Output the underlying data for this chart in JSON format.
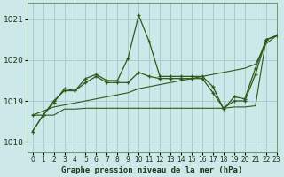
{
  "title": "Graphe pression niveau de la mer (hPa)",
  "background_color": "#cce8e8",
  "grid_color": "#aacccc",
  "line_color": "#2d5a1b",
  "xlim": [
    -0.5,
    23
  ],
  "ylim": [
    1017.75,
    1021.4
  ],
  "yticks": [
    1018,
    1019,
    1020,
    1021
  ],
  "xticks": [
    0,
    1,
    2,
    3,
    4,
    5,
    6,
    7,
    8,
    9,
    10,
    11,
    12,
    13,
    14,
    15,
    16,
    17,
    18,
    19,
    20,
    21,
    22,
    23
  ],
  "series_main": [
    1018.25,
    1018.65,
    1018.95,
    1019.3,
    1019.25,
    1019.55,
    1019.65,
    1019.5,
    1019.5,
    1020.05,
    1021.1,
    1020.45,
    1019.6,
    1019.6,
    1019.6,
    1019.6,
    1019.6,
    1019.35,
    1018.8,
    1019.1,
    1019.05,
    1019.8,
    1020.5,
    1020.6
  ],
  "series_mid": [
    1018.65,
    1018.65,
    1019.0,
    1019.25,
    1019.25,
    1019.45,
    1019.6,
    1019.45,
    1019.45,
    1019.45,
    1019.7,
    1019.6,
    1019.55,
    1019.55,
    1019.55,
    1019.55,
    1019.55,
    1019.2,
    1018.82,
    1019.0,
    1019.0,
    1019.65,
    1020.5,
    1020.6
  ],
  "series_flat": [
    1018.25,
    1018.65,
    1018.65,
    1018.8,
    1018.8,
    1018.82,
    1018.82,
    1018.82,
    1018.82,
    1018.82,
    1018.82,
    1018.82,
    1018.82,
    1018.82,
    1018.82,
    1018.82,
    1018.82,
    1018.82,
    1018.82,
    1018.85,
    1018.85,
    1018.88,
    1020.5,
    1020.6
  ],
  "series_diag": [
    1018.65,
    1018.75,
    1018.85,
    1018.9,
    1018.95,
    1019.0,
    1019.05,
    1019.1,
    1019.15,
    1019.2,
    1019.3,
    1019.35,
    1019.4,
    1019.45,
    1019.5,
    1019.55,
    1019.6,
    1019.65,
    1019.7,
    1019.75,
    1019.8,
    1019.9,
    1020.4,
    1020.6
  ]
}
